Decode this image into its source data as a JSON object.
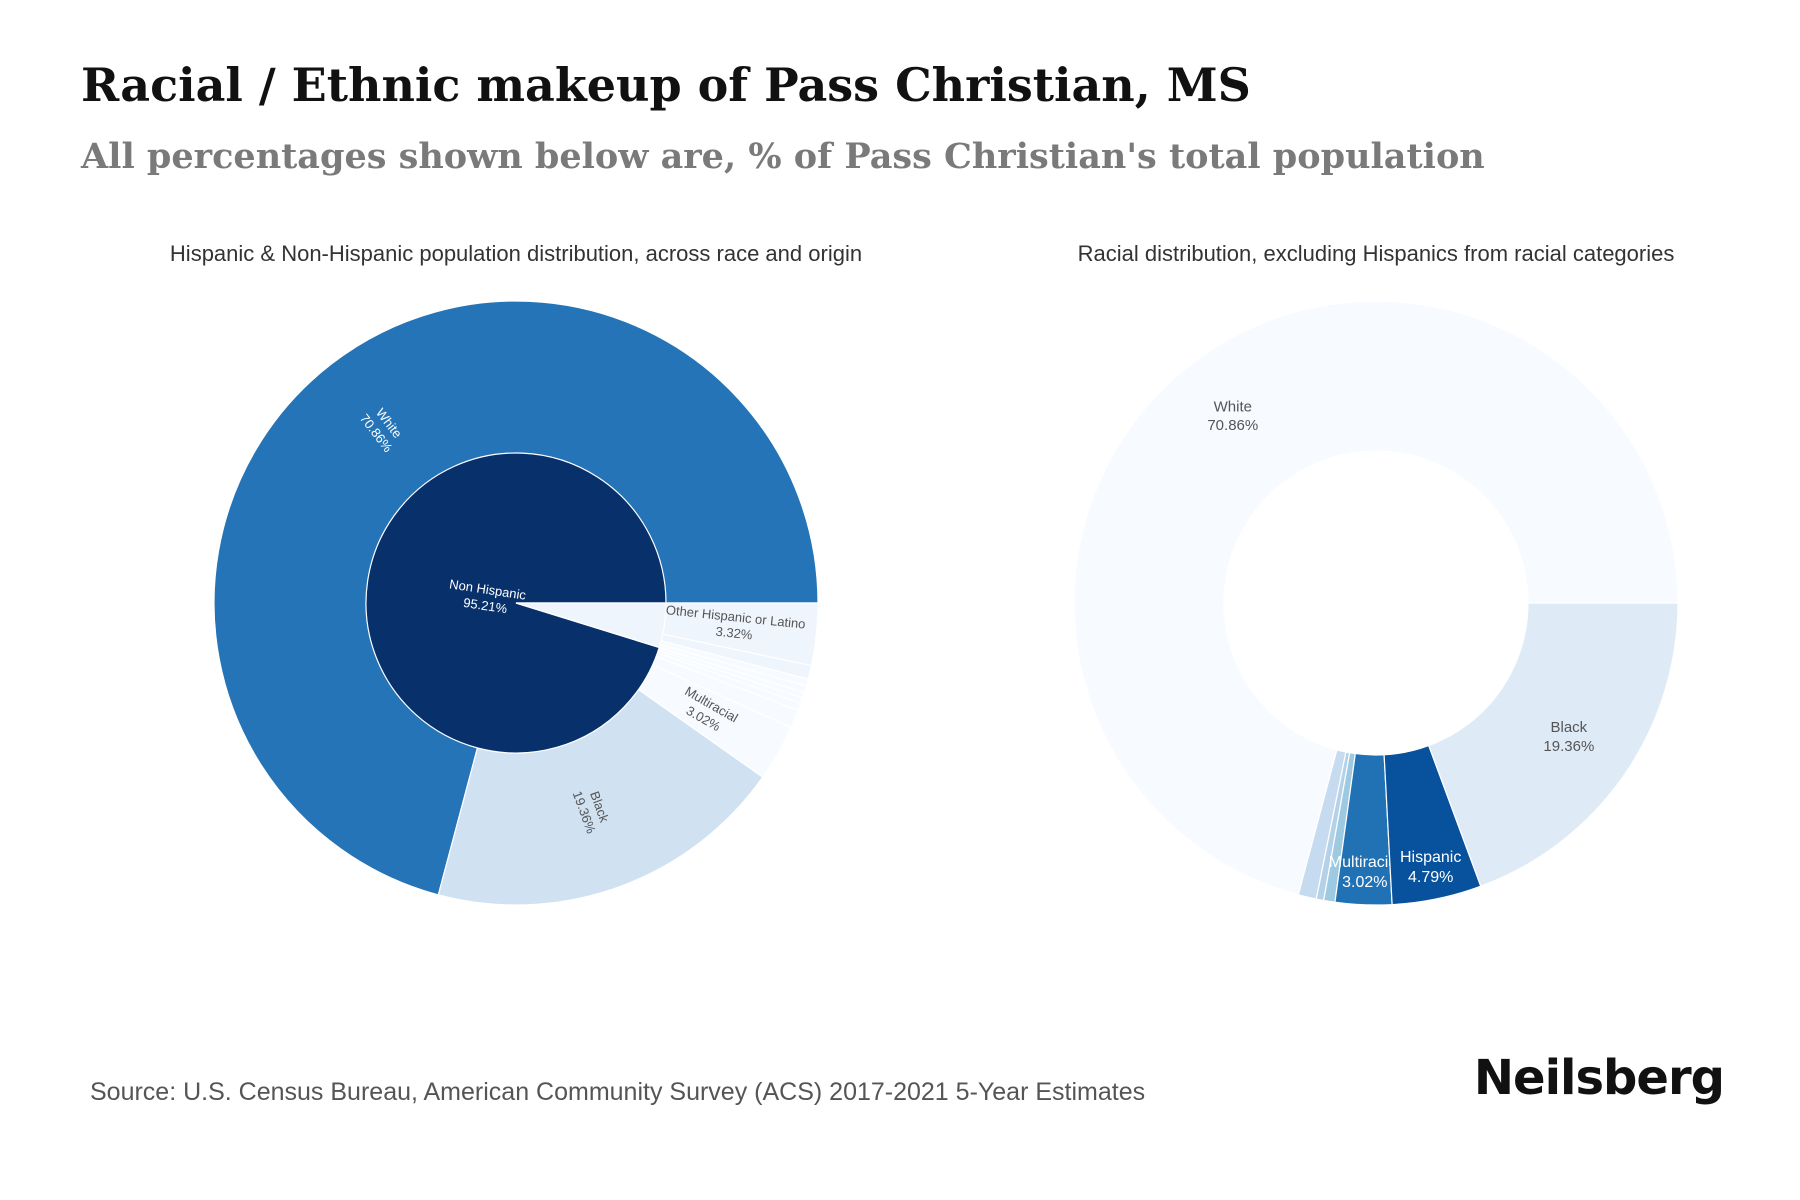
{
  "title": "Racial / Ethnic makeup of Pass Christian, MS",
  "subtitle": "All percentages shown below are, % of Pass Christian's total population",
  "source": "Source: U.S. Census Bureau, American Community Survey (ACS) 2017-2021 5-Year Estimates",
  "brand": "Neilsberg",
  "chart_data": [
    {
      "type": "sunburst",
      "title": "Hispanic & Non-Hispanic population distribution, across race and origin",
      "unit": "%",
      "inner": [
        {
          "label": "Non Hispanic",
          "value": 95.21,
          "value_label": "95.21%",
          "color": "#08306b"
        },
        {
          "label": "",
          "value": 4.79,
          "value_label": "",
          "color": "#eef5fc"
        }
      ],
      "outer": [
        {
          "label": "White",
          "value": 70.86,
          "value_label": "70.86%",
          "color": "#2474b7"
        },
        {
          "label": "Black",
          "value": 19.36,
          "value_label": "19.36%",
          "color": "#d0e1f2"
        },
        {
          "label": "Multiracial",
          "value": 3.02,
          "value_label": "3.02%",
          "color": "#f7fbff"
        },
        {
          "label": "",
          "value": 0.97,
          "value_label": "",
          "color": "#f7fbff"
        },
        {
          "label": "",
          "value": 0.4,
          "value_label": "",
          "color": "#f7fbff"
        },
        {
          "label": "",
          "value": 0.3,
          "value_label": "",
          "color": "#f7fbff"
        },
        {
          "label": "",
          "value": 0.3,
          "value_label": "",
          "color": "#f7fbff"
        },
        {
          "label": "",
          "value": 0.35,
          "value_label": "",
          "color": "#f7fbff"
        },
        {
          "label": "",
          "value": 0.39,
          "value_label": "",
          "color": "#f7fbff"
        },
        {
          "label": "",
          "value": 0.73,
          "value_label": "",
          "color": "#eef5fc"
        },
        {
          "label": "Other Hispanic or Latino",
          "value": 3.32,
          "value_label": "3.32%",
          "color": "#eef5fc"
        }
      ]
    },
    {
      "type": "donut",
      "title": "Racial distribution, excluding Hispanics from racial categories",
      "unit": "%",
      "slices": [
        {
          "label": "White",
          "value": 70.86,
          "value_label": "70.86%",
          "color": "#f7fbff"
        },
        {
          "label": "",
          "value": 0.97,
          "value_label": "",
          "color": "#c6dbef"
        },
        {
          "label": "",
          "value": 0.4,
          "value_label": "",
          "color": "#b3d2e9"
        },
        {
          "label": "",
          "value": 0.6,
          "value_label": "",
          "color": "#9ecae1"
        },
        {
          "label": "Multiracial",
          "value": 3.02,
          "value_label": "3.02%",
          "color": "#2171b5"
        },
        {
          "label": "Hispanic",
          "value": 4.79,
          "value_label": "4.79%",
          "color": "#08519c"
        },
        {
          "label": "Black",
          "value": 19.36,
          "value_label": "19.36%",
          "color": "#deebf7"
        }
      ]
    }
  ]
}
